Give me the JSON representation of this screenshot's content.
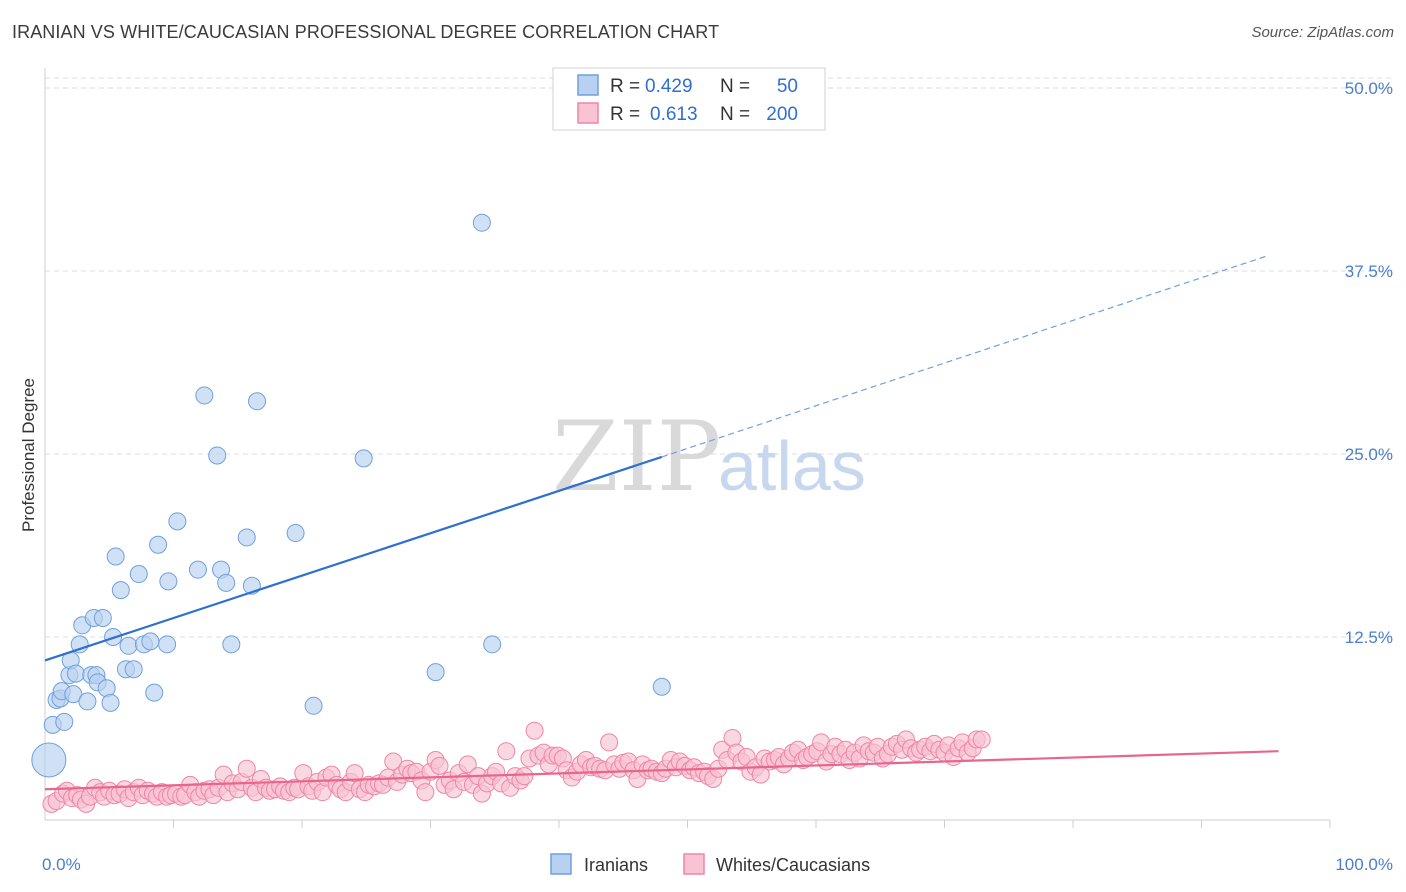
{
  "chart_data": {
    "type": "scatter",
    "title": "IRANIAN VS WHITE/CAUCASIAN PROFESSIONAL DEGREE CORRELATION CHART",
    "source": "Source: ZipAtlas.com",
    "ylabel": "Professional Degree",
    "xlim": [
      0,
      100
    ],
    "ylim": [
      0,
      50
    ],
    "x_tick_labels": [
      "0.0%",
      "100.0%"
    ],
    "y_tick_labels": [
      "12.5%",
      "25.0%",
      "37.5%",
      "50.0%"
    ],
    "y_ticks": [
      12.5,
      25.0,
      37.5,
      50.0
    ],
    "grid": true,
    "watermark": {
      "part1": "ZIP",
      "part2": "atlas"
    },
    "legend_position": "top-center",
    "legend": [
      {
        "r_label": "R =",
        "r": "0.429",
        "n_label": "N =",
        "n": "50"
      },
      {
        "r_label": "R =",
        "r": "0.613",
        "n_label": "N =",
        "n": "200"
      }
    ],
    "series": [
      {
        "name": "Iranians",
        "color": "#6fa0dd",
        "fill": "#b8d1f0",
        "trend": {
          "x0": 0,
          "y0": 10.9,
          "x1": 48,
          "y1": 24.8,
          "dashed_to_x": 95,
          "dashed_to_y": 38.5
        },
        "points": [
          [
            0.3,
            4.1
          ],
          [
            0.6,
            6.5
          ],
          [
            0.9,
            8.2
          ],
          [
            1.2,
            8.3
          ],
          [
            1.3,
            8.8
          ],
          [
            1.5,
            6.7
          ],
          [
            1.9,
            9.9
          ],
          [
            2.0,
            10.9
          ],
          [
            2.2,
            8.6
          ],
          [
            2.4,
            10.0
          ],
          [
            2.7,
            12.0
          ],
          [
            2.9,
            13.3
          ],
          [
            3.3,
            8.1
          ],
          [
            3.6,
            9.9
          ],
          [
            3.8,
            13.8
          ],
          [
            4.0,
            9.9
          ],
          [
            4.1,
            9.4
          ],
          [
            4.5,
            13.8
          ],
          [
            4.8,
            9.0
          ],
          [
            5.1,
            8.0
          ],
          [
            5.3,
            12.5
          ],
          [
            5.5,
            18.0
          ],
          [
            5.9,
            15.7
          ],
          [
            6.3,
            10.3
          ],
          [
            6.5,
            11.9
          ],
          [
            6.9,
            10.3
          ],
          [
            7.3,
            16.8
          ],
          [
            7.7,
            12.0
          ],
          [
            8.2,
            12.2
          ],
          [
            8.5,
            8.7
          ],
          [
            8.8,
            18.8
          ],
          [
            9.5,
            12.0
          ],
          [
            9.6,
            16.3
          ],
          [
            10.3,
            20.4
          ],
          [
            11.9,
            17.1
          ],
          [
            12.4,
            29.0
          ],
          [
            13.4,
            24.9
          ],
          [
            13.7,
            17.1
          ],
          [
            14.1,
            16.2
          ],
          [
            14.5,
            12.0
          ],
          [
            15.7,
            19.3
          ],
          [
            16.1,
            16.0
          ],
          [
            16.5,
            28.6
          ],
          [
            19.5,
            19.6
          ],
          [
            20.9,
            7.8
          ],
          [
            24.8,
            24.7
          ],
          [
            30.4,
            10.1
          ],
          [
            34.0,
            40.8
          ],
          [
            34.8,
            12.0
          ],
          [
            48.0,
            9.1
          ]
        ]
      },
      {
        "name": "Whites/Caucasians",
        "color": "#ef86a6",
        "fill": "#f8c3d3",
        "trend": {
          "x0": 0,
          "y0": 2.1,
          "x1": 96,
          "y1": 4.7
        },
        "points": [
          [
            0.5,
            1.1
          ],
          [
            0.9,
            1.3
          ],
          [
            1.4,
            1.8
          ],
          [
            1.7,
            2.0
          ],
          [
            2.1,
            1.5
          ],
          [
            2.5,
            1.7
          ],
          [
            2.8,
            1.4
          ],
          [
            3.2,
            1.1
          ],
          [
            3.5,
            1.6
          ],
          [
            3.9,
            2.2
          ],
          [
            4.3,
            1.9
          ],
          [
            4.6,
            1.6
          ],
          [
            5.0,
            2.0
          ],
          [
            5.4,
            1.7
          ],
          [
            5.8,
            1.8
          ],
          [
            6.2,
            2.1
          ],
          [
            6.5,
            1.5
          ],
          [
            6.9,
            1.9
          ],
          [
            7.3,
            2.2
          ],
          [
            7.6,
            1.7
          ],
          [
            8.0,
            2.0
          ],
          [
            8.4,
            1.8
          ],
          [
            8.7,
            1.6
          ],
          [
            9.1,
            1.9
          ],
          [
            9.5,
            1.6
          ],
          [
            9.8,
            1.7
          ],
          [
            10.2,
            1.8
          ],
          [
            10.6,
            1.6
          ],
          [
            10.9,
            1.7
          ],
          [
            11.3,
            2.4
          ],
          [
            11.7,
            1.9
          ],
          [
            12.0,
            1.6
          ],
          [
            12.4,
            2.0
          ],
          [
            12.8,
            2.1
          ],
          [
            13.1,
            1.7
          ],
          [
            13.5,
            2.2
          ],
          [
            13.9,
            3.1
          ],
          [
            14.2,
            1.9
          ],
          [
            14.6,
            2.5
          ],
          [
            15.0,
            2.1
          ],
          [
            15.3,
            2.6
          ],
          [
            15.7,
            3.5
          ],
          [
            16.1,
            2.2
          ],
          [
            16.4,
            1.9
          ],
          [
            16.8,
            2.8
          ],
          [
            17.2,
            2.2
          ],
          [
            17.5,
            2.0
          ],
          [
            17.9,
            2.1
          ],
          [
            18.3,
            2.3
          ],
          [
            18.6,
            2.0
          ],
          [
            19.0,
            1.9
          ],
          [
            19.4,
            2.2
          ],
          [
            19.7,
            2.1
          ],
          [
            20.1,
            3.2
          ],
          [
            20.5,
            2.3
          ],
          [
            20.8,
            2.0
          ],
          [
            21.2,
            2.6
          ],
          [
            21.6,
            1.9
          ],
          [
            21.9,
            2.9
          ],
          [
            22.3,
            3.1
          ],
          [
            22.7,
            2.4
          ],
          [
            23.0,
            2.1
          ],
          [
            23.4,
            1.9
          ],
          [
            23.8,
            2.6
          ],
          [
            24.1,
            3.2
          ],
          [
            24.5,
            2.1
          ],
          [
            24.9,
            1.9
          ],
          [
            25.2,
            2.4
          ],
          [
            25.6,
            2.3
          ],
          [
            26.0,
            2.5
          ],
          [
            26.3,
            2.4
          ],
          [
            26.7,
            2.9
          ],
          [
            27.1,
            4.0
          ],
          [
            27.4,
            2.6
          ],
          [
            27.8,
            3.1
          ],
          [
            28.2,
            3.5
          ],
          [
            28.5,
            3.2
          ],
          [
            28.9,
            3.3
          ],
          [
            29.3,
            2.7
          ],
          [
            29.6,
            1.9
          ],
          [
            30.0,
            3.3
          ],
          [
            30.4,
            4.1
          ],
          [
            30.7,
            3.7
          ],
          [
            31.1,
            2.4
          ],
          [
            31.5,
            2.7
          ],
          [
            31.8,
            2.1
          ],
          [
            32.2,
            3.2
          ],
          [
            32.6,
            2.6
          ],
          [
            32.9,
            3.8
          ],
          [
            33.3,
            2.4
          ],
          [
            33.7,
            3.0
          ],
          [
            34.0,
            1.8
          ],
          [
            34.4,
            2.5
          ],
          [
            34.8,
            3.0
          ],
          [
            35.1,
            3.3
          ],
          [
            35.5,
            2.5
          ],
          [
            35.9,
            4.7
          ],
          [
            36.2,
            2.2
          ],
          [
            36.6,
            3.0
          ],
          [
            37.0,
            2.7
          ],
          [
            37.3,
            3.0
          ],
          [
            37.7,
            4.2
          ],
          [
            38.1,
            6.1
          ],
          [
            38.4,
            4.4
          ],
          [
            38.8,
            4.6
          ],
          [
            39.2,
            3.8
          ],
          [
            39.5,
            4.4
          ],
          [
            39.9,
            4.4
          ],
          [
            40.3,
            4.2
          ],
          [
            40.6,
            3.4
          ],
          [
            41.0,
            2.9
          ],
          [
            41.4,
            3.3
          ],
          [
            41.7,
            3.8
          ],
          [
            42.1,
            4.1
          ],
          [
            42.5,
            3.6
          ],
          [
            42.8,
            3.7
          ],
          [
            43.2,
            3.5
          ],
          [
            43.6,
            3.4
          ],
          [
            43.9,
            5.3
          ],
          [
            44.3,
            3.8
          ],
          [
            44.7,
            3.5
          ],
          [
            45.0,
            3.9
          ],
          [
            45.4,
            4.0
          ],
          [
            45.8,
            3.4
          ],
          [
            46.1,
            2.8
          ],
          [
            46.5,
            3.8
          ],
          [
            46.9,
            3.4
          ],
          [
            47.2,
            3.5
          ],
          [
            47.6,
            3.3
          ],
          [
            48.0,
            3.2
          ],
          [
            48.3,
            3.5
          ],
          [
            48.7,
            4.1
          ],
          [
            49.1,
            3.6
          ],
          [
            49.4,
            4.0
          ],
          [
            49.8,
            3.7
          ],
          [
            50.2,
            3.4
          ],
          [
            50.5,
            3.6
          ],
          [
            50.9,
            3.2
          ],
          [
            51.3,
            3.3
          ],
          [
            51.6,
            3.0
          ],
          [
            52.0,
            2.8
          ],
          [
            52.4,
            3.5
          ],
          [
            52.7,
            4.8
          ],
          [
            53.1,
            4.1
          ],
          [
            53.5,
            5.6
          ],
          [
            53.8,
            4.6
          ],
          [
            54.2,
            4.0
          ],
          [
            54.6,
            4.3
          ],
          [
            54.9,
            3.3
          ],
          [
            55.3,
            3.6
          ],
          [
            55.7,
            3.1
          ],
          [
            56.0,
            4.2
          ],
          [
            56.4,
            4.0
          ],
          [
            56.8,
            4.1
          ],
          [
            57.1,
            4.3
          ],
          [
            57.5,
            3.8
          ],
          [
            57.9,
            4.2
          ],
          [
            58.2,
            4.6
          ],
          [
            58.6,
            4.8
          ],
          [
            59.0,
            4.1
          ],
          [
            59.3,
            4.3
          ],
          [
            59.7,
            4.5
          ],
          [
            60.1,
            4.7
          ],
          [
            60.4,
            5.3
          ],
          [
            60.8,
            4.0
          ],
          [
            61.2,
            4.5
          ],
          [
            61.5,
            5.0
          ],
          [
            61.9,
            4.5
          ],
          [
            62.3,
            4.8
          ],
          [
            62.6,
            4.1
          ],
          [
            63.0,
            4.6
          ],
          [
            63.4,
            4.2
          ],
          [
            63.7,
            5.1
          ],
          [
            64.1,
            4.7
          ],
          [
            64.5,
            4.6
          ],
          [
            64.8,
            5.0
          ],
          [
            65.2,
            4.2
          ],
          [
            65.6,
            4.5
          ],
          [
            65.9,
            5.0
          ],
          [
            66.3,
            5.2
          ],
          [
            66.7,
            4.8
          ],
          [
            67.0,
            5.5
          ],
          [
            67.4,
            4.9
          ],
          [
            67.8,
            4.6
          ],
          [
            68.1,
            4.8
          ],
          [
            68.5,
            5.0
          ],
          [
            68.9,
            4.7
          ],
          [
            69.2,
            5.2
          ],
          [
            69.6,
            4.8
          ],
          [
            70.0,
            4.6
          ],
          [
            70.3,
            5.1
          ],
          [
            70.7,
            4.3
          ],
          [
            71.1,
            4.9
          ],
          [
            71.4,
            5.3
          ],
          [
            71.8,
            4.6
          ],
          [
            72.2,
            4.9
          ],
          [
            72.5,
            5.5
          ],
          [
            72.9,
            5.5
          ]
        ]
      }
    ]
  }
}
